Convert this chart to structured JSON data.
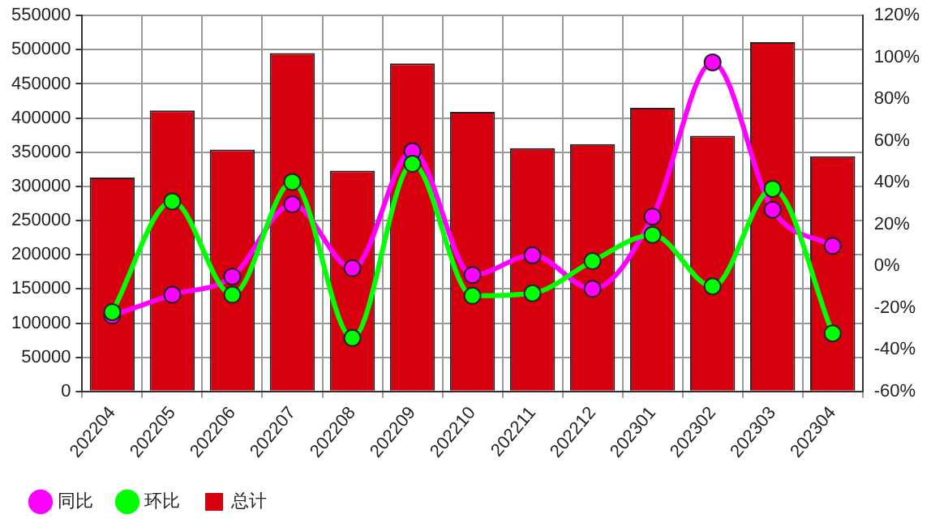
{
  "chart_data": {
    "type": "bar",
    "categories": [
      "202204",
      "202205",
      "202206",
      "202207",
      "202208",
      "202209",
      "202210",
      "202211",
      "202212",
      "202301",
      "202302",
      "202303",
      "202304"
    ],
    "series": [
      {
        "name": "同比",
        "type": "line",
        "axis": "y2",
        "color": "#ff00ff",
        "values": [
          -23.7,
          -13.7,
          -5,
          29.6,
          -1,
          55,
          -4.3,
          5.2,
          -10.9,
          23.7,
          97.6,
          27,
          9.7
        ]
      },
      {
        "name": "环比",
        "type": "line",
        "axis": "y2",
        "color": "#00ff00",
        "values": [
          -22,
          31,
          -13.7,
          40.3,
          -34.4,
          49,
          -14.2,
          -13,
          2.4,
          15,
          -9.7,
          37,
          -32.2
        ]
      },
      {
        "name": "总计",
        "color": "#d7000f",
        "values": [
          313000,
          411000,
          354000,
          495000,
          323000,
          480000,
          409000,
          356000,
          362000,
          415000,
          374000,
          511000,
          344000
        ]
      }
    ],
    "ylim": [
      0,
      550000
    ],
    "yticks": [
      0,
      50000,
      100000,
      150000,
      200000,
      250000,
      300000,
      350000,
      400000,
      450000,
      500000,
      550000
    ],
    "y2lim": [
      -60,
      120
    ],
    "y2ticks": [
      {
        "value": -60,
        "label": "-60%"
      },
      {
        "value": -40,
        "label": "-40%"
      },
      {
        "value": -20,
        "label": "-20%"
      },
      {
        "value": 0,
        "label": "0%"
      },
      {
        "value": 20,
        "label": "20%"
      },
      {
        "value": 40,
        "label": "40%"
      },
      {
        "value": 60,
        "label": "60%"
      },
      {
        "value": 80,
        "label": "80%"
      },
      {
        "value": 100,
        "label": "100%"
      },
      {
        "value": 120,
        "label": "120%"
      }
    ],
    "grid": true,
    "legend": "bottom left",
    "marker": "circle"
  }
}
